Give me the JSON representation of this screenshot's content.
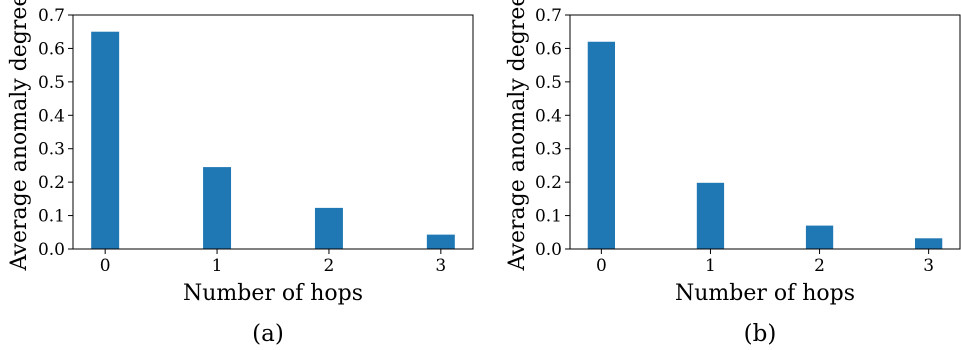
{
  "chart_data": [
    {
      "type": "bar",
      "caption": "(a)",
      "categories": [
        "0",
        "1",
        "2",
        "3"
      ],
      "values": [
        0.65,
        0.245,
        0.123,
        0.043
      ],
      "xlabel": "Number of hops",
      "ylabel": "Average anomaly degree",
      "ylim": [
        0,
        0.7
      ],
      "yticks": [
        "0.0",
        "0.1",
        "0.2",
        "0.3",
        "0.4",
        "0.5",
        "0.6",
        "0.7"
      ],
      "grid": false,
      "bar_color": "#1f77b4"
    },
    {
      "type": "bar",
      "caption": "(b)",
      "categories": [
        "0",
        "1",
        "2",
        "3"
      ],
      "values": [
        0.62,
        0.198,
        0.07,
        0.032
      ],
      "xlabel": "Number of hops",
      "ylabel": "Average anomaly degree",
      "ylim": [
        0,
        0.7
      ],
      "yticks": [
        "0.0",
        "0.1",
        "0.2",
        "0.3",
        "0.4",
        "0.5",
        "0.6",
        "0.7"
      ],
      "grid": false,
      "bar_color": "#1f77b4"
    }
  ]
}
